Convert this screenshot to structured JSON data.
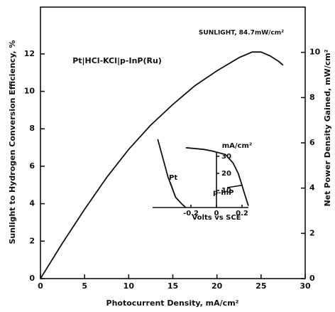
{
  "chart_data": [
    {
      "type": "line",
      "annotations": [
        "SUNLIGHT, 84.7mW/cm²",
        "Pt|HCl-KCl|p-InP(Ru)"
      ],
      "xlabel": "Photocurrent Density, mA/cm²",
      "ylabel": "Sunlight to Hydrogen Conversion Efficiency, %",
      "y2label": "Net Power Density Gained, mW/cm²",
      "xlim": [
        0,
        30
      ],
      "xticks": [
        0,
        5,
        10,
        15,
        20,
        25,
        30
      ],
      "ylim": [
        0,
        14.5
      ],
      "yticks": [
        0,
        2,
        4,
        6,
        8,
        10,
        12
      ],
      "y2lim": [
        0,
        12
      ],
      "y2ticks": [
        0,
        2,
        4,
        6,
        8,
        10
      ],
      "series": [
        {
          "color": "#111111",
          "x": [
            0,
            2.5,
            5,
            7.5,
            10,
            12.5,
            15,
            17.5,
            20,
            22.5,
            24,
            25,
            26,
            27,
            27.5
          ],
          "values": [
            0,
            1.9,
            3.7,
            5.4,
            6.9,
            8.2,
            9.3,
            10.3,
            11.1,
            11.8,
            12.1,
            12.1,
            11.9,
            11.6,
            11.4
          ]
        }
      ]
    },
    {
      "type": "line",
      "xlabel": "Volts vs SCE",
      "ylabel": "mA/cm²",
      "xlim": [
        -0.5,
        0.25
      ],
      "xticks": [
        {
          "value": -0.2,
          "label": "-0.2"
        },
        0,
        0.2
      ],
      "ylim": [
        0,
        32
      ],
      "yticks": [
        10,
        20,
        30
      ],
      "series": [
        {
          "name": "Pt",
          "color": "#111111",
          "x": [
            -0.24,
            -0.27,
            -0.32,
            -0.38,
            -0.46
          ],
          "values": [
            0,
            2,
            6,
            18,
            40
          ]
        },
        {
          "name": "p-InP",
          "color": "#111111",
          "x": [
            -0.24,
            -0.1,
            -0.03,
            0.07,
            0.13,
            0.17,
            0.2,
            0.22,
            0.25
          ],
          "values": [
            35,
            34,
            33,
            31,
            26,
            20,
            13,
            8,
            1
          ]
        }
      ]
    }
  ]
}
